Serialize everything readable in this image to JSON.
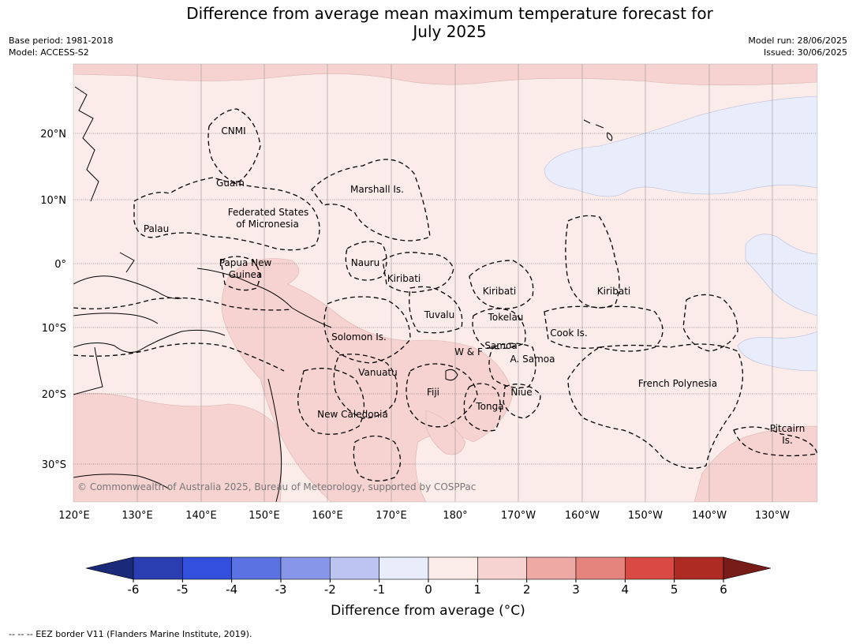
{
  "title": {
    "line1": "Difference from average mean maximum temperature forecast for",
    "line2": "July 2025"
  },
  "meta_left": {
    "base_period": "Base period: 1981-2018",
    "model": "Model: ACCESS-S2"
  },
  "meta_right": {
    "model_run": "Model run: 28/06/2025",
    "issued": "Issued: 30/06/2025"
  },
  "map": {
    "lon_labels": [
      "120°E",
      "130°E",
      "140°E",
      "150°E",
      "160°E",
      "170°E",
      "180°",
      "170°W",
      "160°W",
      "150°W",
      "140°W",
      "130°W"
    ],
    "lat_labels": [
      "20°N",
      "10°N",
      "0°",
      "10°S",
      "20°S",
      "30°S"
    ],
    "regions": [
      {
        "name": "CNMI"
      },
      {
        "name": "Guam"
      },
      {
        "name": "Marshall Is."
      },
      {
        "name": "Federated States"
      },
      {
        "name": "of Micronesia"
      },
      {
        "name": "Palau"
      },
      {
        "name": "Nauru"
      },
      {
        "name": "Papua New"
      },
      {
        "name": "Guinea"
      },
      {
        "name": "Kiribati"
      },
      {
        "name": "Kiribati"
      },
      {
        "name": "Kiribati"
      },
      {
        "name": "Tuvalu"
      },
      {
        "name": "Tokelau"
      },
      {
        "name": "Cook Is."
      },
      {
        "name": "Solomon Is."
      },
      {
        "name": "W & F"
      },
      {
        "name": "Samoa"
      },
      {
        "name": "A. Samoa"
      },
      {
        "name": "Vanuatu"
      },
      {
        "name": "Fiji"
      },
      {
        "name": "Niue"
      },
      {
        "name": "Tonga"
      },
      {
        "name": "French Polynesia"
      },
      {
        "name": "New Caledonia"
      },
      {
        "name": "Pitcairn"
      },
      {
        "name": "Is."
      }
    ],
    "copyright": "© Commonwealth of Australia 2025, Bureau of Meteorology, supported by COSPPac",
    "colors": {
      "band_0_1": "#fbebe9",
      "band_1_2": "#f6d3d1",
      "band_neg1_0": "#e9ecfb"
    }
  },
  "colorbar": {
    "ticks": [
      "-6",
      "-5",
      "-4",
      "-3",
      "-2",
      "-1",
      "0",
      "1",
      "2",
      "3",
      "4",
      "5",
      "6"
    ],
    "colors": [
      "#1a2a78",
      "#2a3db1",
      "#3250dd",
      "#5a72e2",
      "#8896ea",
      "#bcc4f2",
      "#e9ecfb",
      "#fbebe9",
      "#f6d3d1",
      "#eea9a5",
      "#e5837d",
      "#d94a42",
      "#ae2b24",
      "#771c18"
    ],
    "label": "Difference from average (°C)"
  },
  "footnote": "--  --  -- EEZ border V11 (Flanders Marine Institute, 2019)."
}
